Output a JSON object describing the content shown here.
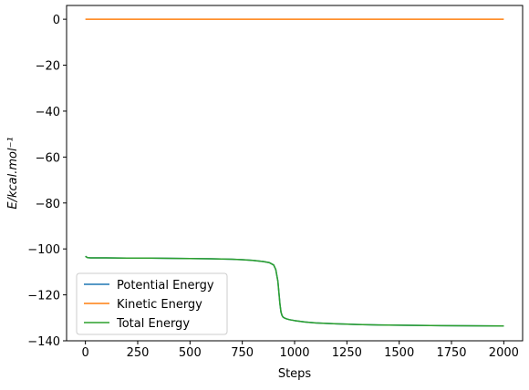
{
  "chart_data": {
    "type": "line",
    "title": "",
    "xlabel": "Steps",
    "ylabel": "E/kcal.mol⁻¹",
    "xlim": [
      -90,
      2090
    ],
    "ylim": [
      -140,
      6
    ],
    "xticks": [
      0,
      250,
      500,
      750,
      1000,
      1250,
      1500,
      1750,
      2000
    ],
    "yticks": [
      0,
      -20,
      -40,
      -60,
      -80,
      -100,
      -120,
      -140
    ],
    "grid": false,
    "legend_position": "lower left",
    "series": [
      {
        "name": "Potential Energy",
        "color": "#1f77b4",
        "x": [
          0,
          10,
          25,
          100,
          200,
          300,
          400,
          500,
          600,
          700,
          750,
          800,
          850,
          880,
          900,
          910,
          920,
          925,
          930,
          935,
          940,
          945,
          950,
          960,
          975,
          1000,
          1050,
          1100,
          1200,
          1300,
          1400,
          1500,
          1600,
          1700,
          1800,
          1900,
          2000
        ],
        "y": [
          -103.2,
          -103.8,
          -103.9,
          -103.9,
          -104.0,
          -104.0,
          -104.1,
          -104.2,
          -104.3,
          -104.5,
          -104.7,
          -105.0,
          -105.5,
          -106.0,
          -107.0,
          -109.0,
          -114.0,
          -119.0,
          -124.0,
          -127.5,
          -129.0,
          -129.7,
          -130.0,
          -130.4,
          -130.8,
          -131.2,
          -131.8,
          -132.2,
          -132.6,
          -132.9,
          -133.1,
          -133.2,
          -133.3,
          -133.4,
          -133.45,
          -133.5,
          -133.55
        ]
      },
      {
        "name": "Kinetic Energy",
        "color": "#ff7f0e",
        "x": [
          0,
          2000
        ],
        "y": [
          0,
          0
        ]
      },
      {
        "name": "Total Energy",
        "color": "#2ca02c",
        "x": [
          0,
          10,
          25,
          100,
          200,
          300,
          400,
          500,
          600,
          700,
          750,
          800,
          850,
          880,
          900,
          910,
          920,
          925,
          930,
          935,
          940,
          945,
          950,
          960,
          975,
          1000,
          1050,
          1100,
          1200,
          1300,
          1400,
          1500,
          1600,
          1700,
          1800,
          1900,
          2000
        ],
        "y": [
          -103.2,
          -103.8,
          -103.9,
          -103.9,
          -104.0,
          -104.0,
          -104.1,
          -104.2,
          -104.3,
          -104.5,
          -104.7,
          -105.0,
          -105.5,
          -106.0,
          -107.0,
          -109.0,
          -114.0,
          -119.0,
          -124.0,
          -127.5,
          -129.0,
          -129.7,
          -130.0,
          -130.4,
          -130.8,
          -131.2,
          -131.8,
          -132.2,
          -132.6,
          -132.9,
          -133.1,
          -133.2,
          -133.3,
          -133.4,
          -133.45,
          -133.5,
          -133.55
        ]
      }
    ]
  }
}
